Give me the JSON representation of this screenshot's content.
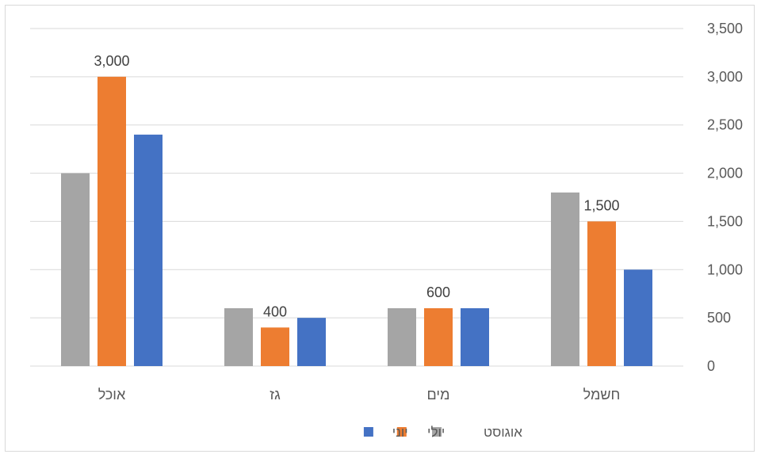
{
  "chart_data": {
    "type": "bar",
    "categories": [
      "אוכל",
      "גז",
      "מים",
      "חשמל"
    ],
    "series": [
      {
        "name": "אוגוסט",
        "color": "#a5a5a5",
        "values": [
          2000,
          600,
          600,
          1800
        ]
      },
      {
        "name": "יולי",
        "color": "#ed7d31",
        "values": [
          3000,
          400,
          600,
          1500
        ]
      },
      {
        "name": "יוני",
        "color": "#4472c4",
        "values": [
          2400,
          500,
          600,
          1000
        ]
      }
    ],
    "data_labels": [
      {
        "category": "אוכל",
        "series": "יולי",
        "text": "3,000"
      },
      {
        "category": "גז",
        "series": "יולי",
        "text": "400"
      },
      {
        "category": "מים",
        "series": "יולי",
        "text": "600"
      },
      {
        "category": "חשמל",
        "series": "יולי",
        "text": "1,500"
      }
    ],
    "yticks": [
      0,
      500,
      1000,
      1500,
      2000,
      2500,
      3000,
      3500
    ],
    "ytick_labels": [
      "0",
      "500",
      "1,000",
      "1,500",
      "2,000",
      "2,500",
      "3,000",
      "3,500"
    ],
    "ylim": [
      0,
      3500
    ],
    "yaxis_side": "right",
    "grid": true,
    "legend_position": "bottom",
    "title": "",
    "xlabel": "",
    "ylabel": ""
  }
}
